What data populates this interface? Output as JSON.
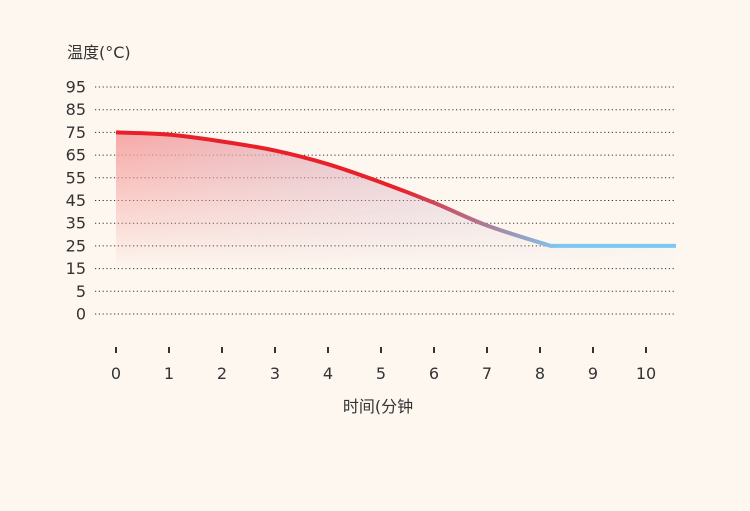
{
  "chart_data": {
    "type": "area",
    "ylabel": "温度(°C)",
    "xlabel": "时间(分钟",
    "y_ticks": [
      95,
      85,
      75,
      65,
      55,
      45,
      35,
      25,
      15,
      5,
      0
    ],
    "x_ticks": [
      0,
      1,
      2,
      3,
      4,
      5,
      6,
      7,
      8,
      9,
      10
    ],
    "grid": true,
    "series": [
      {
        "x": [
          0,
          1,
          2,
          3,
          4,
          5,
          6,
          7,
          8.2,
          9,
          10,
          11
        ],
        "y": [
          75,
          74,
          71,
          67,
          61,
          53,
          44,
          34,
          25,
          25,
          25,
          25
        ]
      }
    ],
    "colors": {
      "line_start": "#e8202a",
      "line_end": "#7cc8f2",
      "area_top": "#f7a7a3",
      "area_bottom": "#e7eef2",
      "grid": "#333333",
      "text": "#333333",
      "background": "#fdf7f0"
    }
  }
}
